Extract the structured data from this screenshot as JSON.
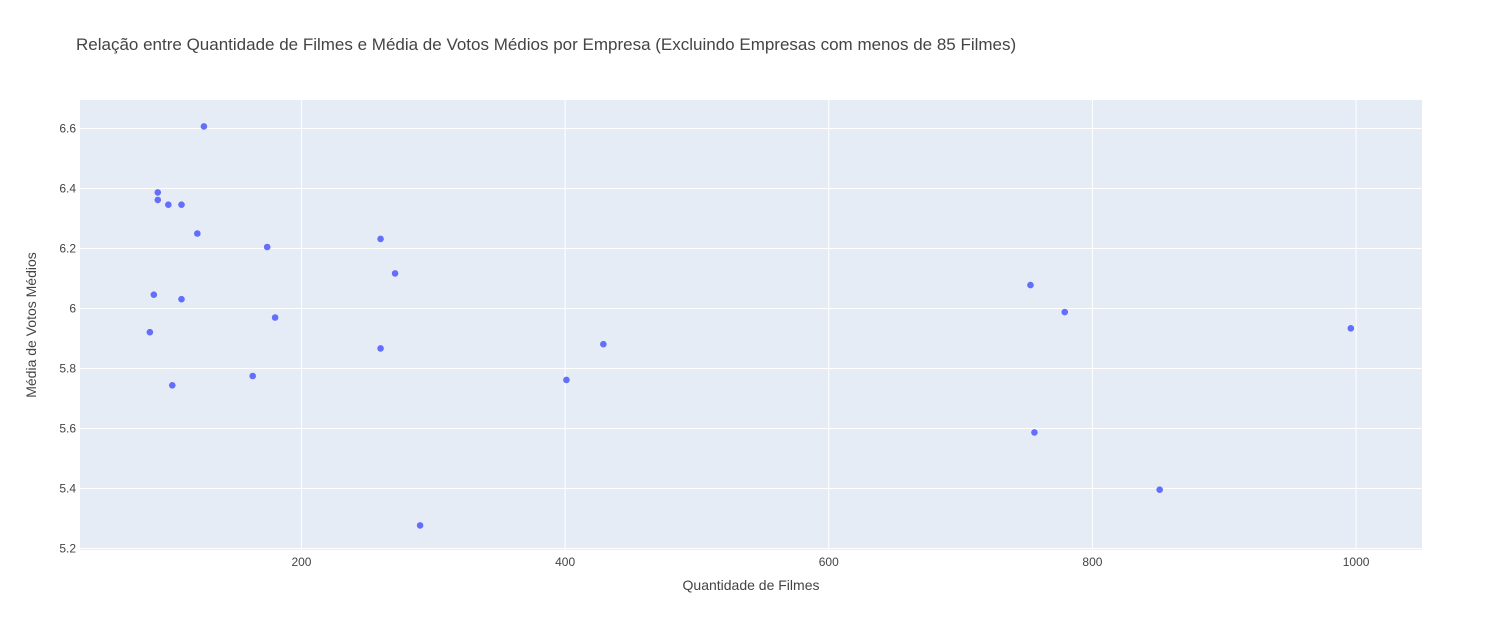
{
  "chart_data": {
    "type": "scatter",
    "title": "Relação entre Quantidade de Filmes e Média de Votos Médios por Empresa (Excluindo Empresas com menos de 85 Filmes)",
    "xlabel": "Quantidade de Filmes",
    "ylabel": "Média de Votos Médios",
    "xlim": [
      32,
      1050
    ],
    "ylim": [
      5.195,
      6.695
    ],
    "xticks": [
      200,
      400,
      600,
      800,
      1000
    ],
    "xtick_labels": [
      "200",
      "400",
      "600",
      "800",
      "1000"
    ],
    "yticks": [
      5.2,
      5.4,
      5.6,
      5.8,
      6.0,
      6.2,
      6.4,
      6.6
    ],
    "ytick_labels": [
      "5.2",
      "5.4",
      "5.6",
      "5.8",
      "6",
      "6.2",
      "6.4",
      "6.6"
    ],
    "grid": true,
    "colors": {
      "plot_bg": "#E5ECF6",
      "grid": "#ffffff",
      "marker": "#636EFA",
      "text": "#444444"
    },
    "points": [
      {
        "x": 126,
        "y": 6.607
      },
      {
        "x": 91,
        "y": 6.387
      },
      {
        "x": 91,
        "y": 6.362
      },
      {
        "x": 99,
        "y": 6.346
      },
      {
        "x": 109,
        "y": 6.346
      },
      {
        "x": 121,
        "y": 6.25
      },
      {
        "x": 174,
        "y": 6.205
      },
      {
        "x": 260,
        "y": 6.232
      },
      {
        "x": 271,
        "y": 6.117
      },
      {
        "x": 88,
        "y": 6.046
      },
      {
        "x": 109,
        "y": 6.031
      },
      {
        "x": 180,
        "y": 5.97
      },
      {
        "x": 85,
        "y": 5.921
      },
      {
        "x": 260,
        "y": 5.867
      },
      {
        "x": 163,
        "y": 5.775
      },
      {
        "x": 102,
        "y": 5.744
      },
      {
        "x": 290,
        "y": 5.277
      },
      {
        "x": 401,
        "y": 5.762
      },
      {
        "x": 429,
        "y": 5.881
      },
      {
        "x": 753,
        "y": 6.078
      },
      {
        "x": 779,
        "y": 5.988
      },
      {
        "x": 756,
        "y": 5.587
      },
      {
        "x": 851,
        "y": 5.396
      },
      {
        "x": 996,
        "y": 5.934
      }
    ]
  }
}
